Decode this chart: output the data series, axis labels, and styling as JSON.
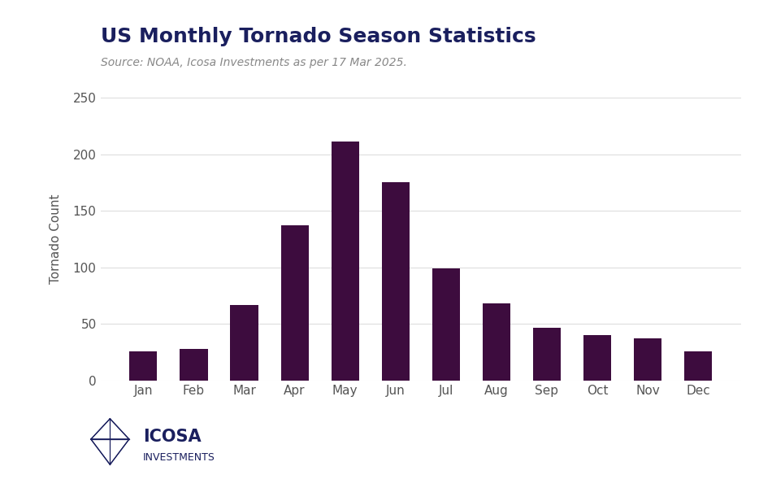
{
  "title": "US Monthly Tornado Season Statistics",
  "subtitle": "Source: NOAA, Icosa Investments as per 17 Mar 2025.",
  "ylabel": "Tornado Count",
  "months": [
    "Jan",
    "Feb",
    "Mar",
    "Apr",
    "May",
    "Jun",
    "Jul",
    "Aug",
    "Sep",
    "Oct",
    "Nov",
    "Dec"
  ],
  "values": [
    26,
    28,
    67,
    137,
    211,
    175,
    99,
    68,
    47,
    40,
    37,
    26
  ],
  "bar_color": "#3d0c3e",
  "background_color": "#ffffff",
  "title_color": "#1a1f5e",
  "ylim": [
    0,
    250
  ],
  "yticks": [
    0,
    50,
    100,
    150,
    200,
    250
  ],
  "bar_width": 0.55,
  "title_fontsize": 18,
  "subtitle_fontsize": 10,
  "ylabel_fontsize": 11,
  "tick_fontsize": 11
}
